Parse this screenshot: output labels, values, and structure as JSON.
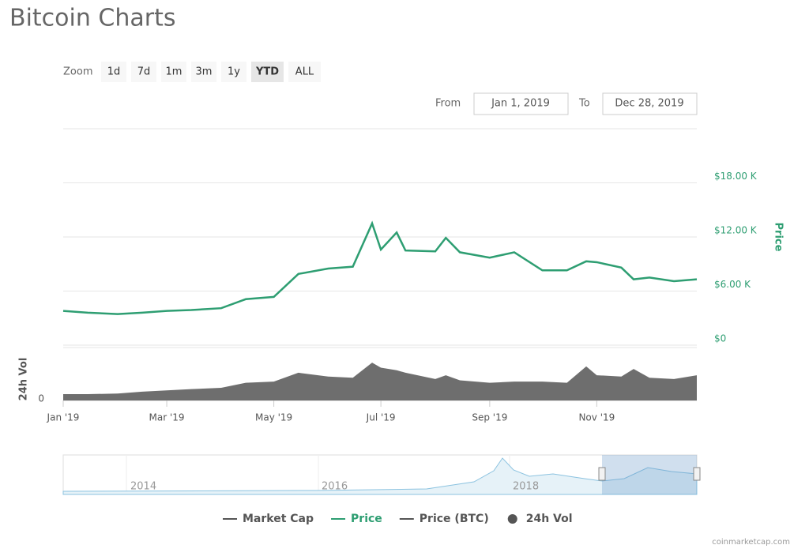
{
  "chart_data": {
    "type": "line",
    "title": "Bitcoin Charts",
    "zoom_label": "Zoom",
    "zoom_options": [
      "1d",
      "7d",
      "1m",
      "3m",
      "1y",
      "YTD",
      "ALL"
    ],
    "zoom_selected": "YTD",
    "from_label": "From",
    "from_value": "Jan 1, 2019",
    "to_label": "To",
    "to_value": "Dec 28, 2019",
    "y_label": "Price",
    "x": [
      "2019-01-01",
      "2019-01-15",
      "2019-02-01",
      "2019-02-15",
      "2019-03-01",
      "2019-03-15",
      "2019-04-01",
      "2019-04-15",
      "2019-05-01",
      "2019-05-15",
      "2019-06-01",
      "2019-06-15",
      "2019-06-26",
      "2019-07-01",
      "2019-07-10",
      "2019-07-15",
      "2019-08-01",
      "2019-08-07",
      "2019-08-15",
      "2019-09-01",
      "2019-09-15",
      "2019-10-01",
      "2019-10-15",
      "2019-10-26",
      "2019-11-01",
      "2019-11-15",
      "2019-11-22",
      "2019-12-01",
      "2019-12-15",
      "2019-12-28"
    ],
    "xlim": [
      "2019-01-01",
      "2019-12-28"
    ],
    "xticks": [
      {
        "value": "2019-01-01",
        "label": "Jan '19"
      },
      {
        "value": "2019-03-01",
        "label": "Mar '19"
      },
      {
        "value": "2019-05-01",
        "label": "May '19"
      },
      {
        "value": "2019-07-01",
        "label": "Jul '19"
      },
      {
        "value": "2019-09-01",
        "label": "Sep '19"
      },
      {
        "value": "2019-11-01",
        "label": "Nov '19"
      }
    ],
    "series": [
      {
        "name": "Price",
        "color": "#2e9e72",
        "values": [
          3800,
          3600,
          3450,
          3600,
          3800,
          3900,
          4100,
          5100,
          5350,
          7900,
          8500,
          8700,
          13500,
          10600,
          12500,
          10500,
          10400,
          11900,
          10300,
          9700,
          10300,
          8300,
          8300,
          9300,
          9200,
          8600,
          7300,
          7500,
          7100,
          7300
        ]
      }
    ],
    "ylim": [
      0,
      24000
    ],
    "yticks": [
      {
        "value": 0,
        "label": "$0"
      },
      {
        "value": 6000,
        "label": "$6.00 K"
      },
      {
        "value": 12000,
        "label": "$12.00 K"
      },
      {
        "value": 18000,
        "label": "$18.00 K"
      }
    ],
    "volume": {
      "name": "24h Vol",
      "color": "#555555",
      "values": [
        5000000000,
        5000000000,
        5500000000,
        7000000000,
        8000000000,
        9000000000,
        10000000000,
        14000000000,
        15000000000,
        22000000000,
        19000000000,
        18000000000,
        30000000000,
        26000000000,
        24000000000,
        22000000000,
        17000000000,
        20000000000,
        16000000000,
        14000000000,
        15000000000,
        15000000000,
        14000000000,
        27000000000,
        20000000000,
        19000000000,
        25000000000,
        18000000000,
        17000000000,
        20000000000
      ]
    },
    "vol_ylim": [
      0,
      42000000000
    ],
    "vol_yticks": [
      0
    ],
    "other_legend": [
      {
        "name": "Market Cap",
        "color": "#555555"
      },
      {
        "name": "Price (BTC)",
        "color": "#555555"
      }
    ],
    "navigator_labels": [
      "2014",
      "2016",
      "2018"
    ],
    "source": "coinmarketcap.com",
    "grid": true
  }
}
